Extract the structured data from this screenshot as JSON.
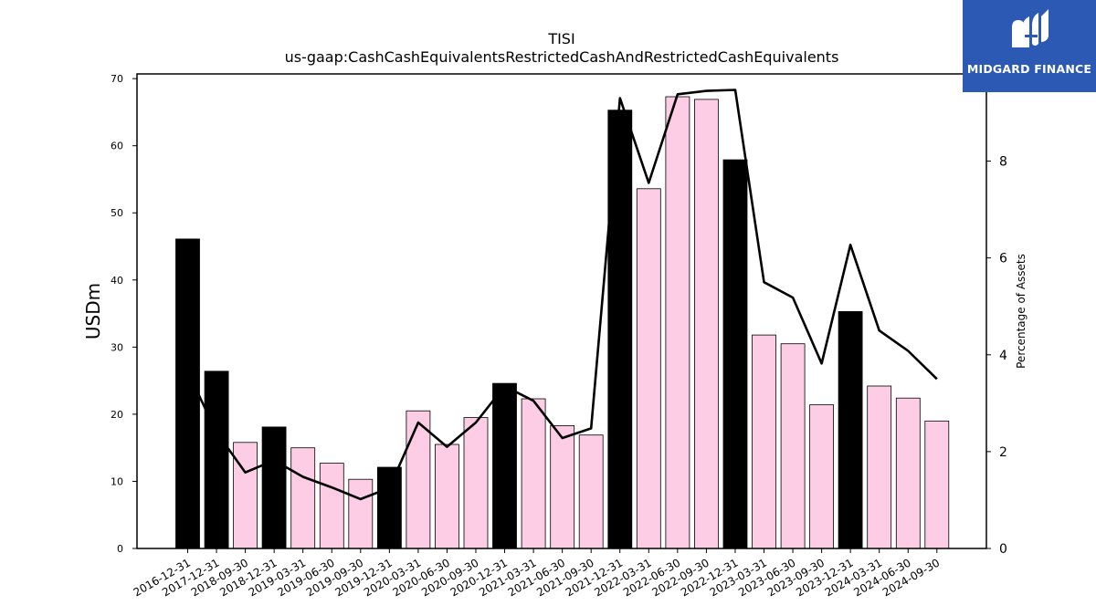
{
  "chart_data": {
    "type": "bar",
    "title": "TISI",
    "subtitle": "us-gaap:CashCashEquivalentsRestrictedCashAndRestrictedCashEquivalents",
    "ylabel": "USDm",
    "y2label": "Percentage of Assets",
    "ylim": [
      0,
      70.7
    ],
    "y2lim": [
      0,
      9.8
    ],
    "yticks": [
      0,
      10,
      20,
      30,
      40,
      50,
      60,
      70
    ],
    "y2ticks": [
      0,
      2,
      4,
      6,
      8
    ],
    "categories": [
      "2016-12-31",
      "2017-12-31",
      "2018-09-30",
      "2018-12-31",
      "2019-03-31",
      "2019-06-30",
      "2019-09-30",
      "2019-12-31",
      "2020-03-31",
      "2020-06-30",
      "2020-09-30",
      "2020-12-31",
      "2021-03-31",
      "2021-06-30",
      "2021-09-30",
      "2021-12-31",
      "2022-03-31",
      "2022-06-30",
      "2022-09-30",
      "2022-12-31",
      "2023-03-31",
      "2023-06-30",
      "2023-09-30",
      "2023-12-31",
      "2024-03-31",
      "2024-06-30",
      "2024-09-30"
    ],
    "series": [
      {
        "values": [
          46.1,
          26.4,
          15.8,
          18.1,
          15.0,
          12.7,
          10.3,
          12.1,
          20.5,
          15.5,
          19.5,
          24.6,
          22.3,
          18.3,
          16.9,
          65.3,
          53.6,
          67.3,
          66.9,
          57.9,
          31.8,
          30.5,
          21.4,
          35.3,
          24.2,
          22.4,
          19.0
        ]
      },
      {
        "type": "line",
        "axis": "right",
        "values": [
          3.65,
          2.4,
          1.57,
          1.82,
          1.48,
          1.26,
          1.02,
          1.25,
          2.6,
          2.1,
          2.6,
          3.35,
          3.05,
          2.28,
          2.48,
          9.3,
          7.55,
          9.38,
          9.45,
          9.47,
          5.5,
          5.18,
          3.82,
          6.27,
          4.5,
          4.08,
          3.5
        ]
      }
    ],
    "annual_bar_color": "#000000",
    "quarter_bar_color": "#fccde5",
    "line_color": "#000000"
  },
  "logo": {
    "text": "MIDGARD FINANCE",
    "background": "#2b59b3"
  }
}
